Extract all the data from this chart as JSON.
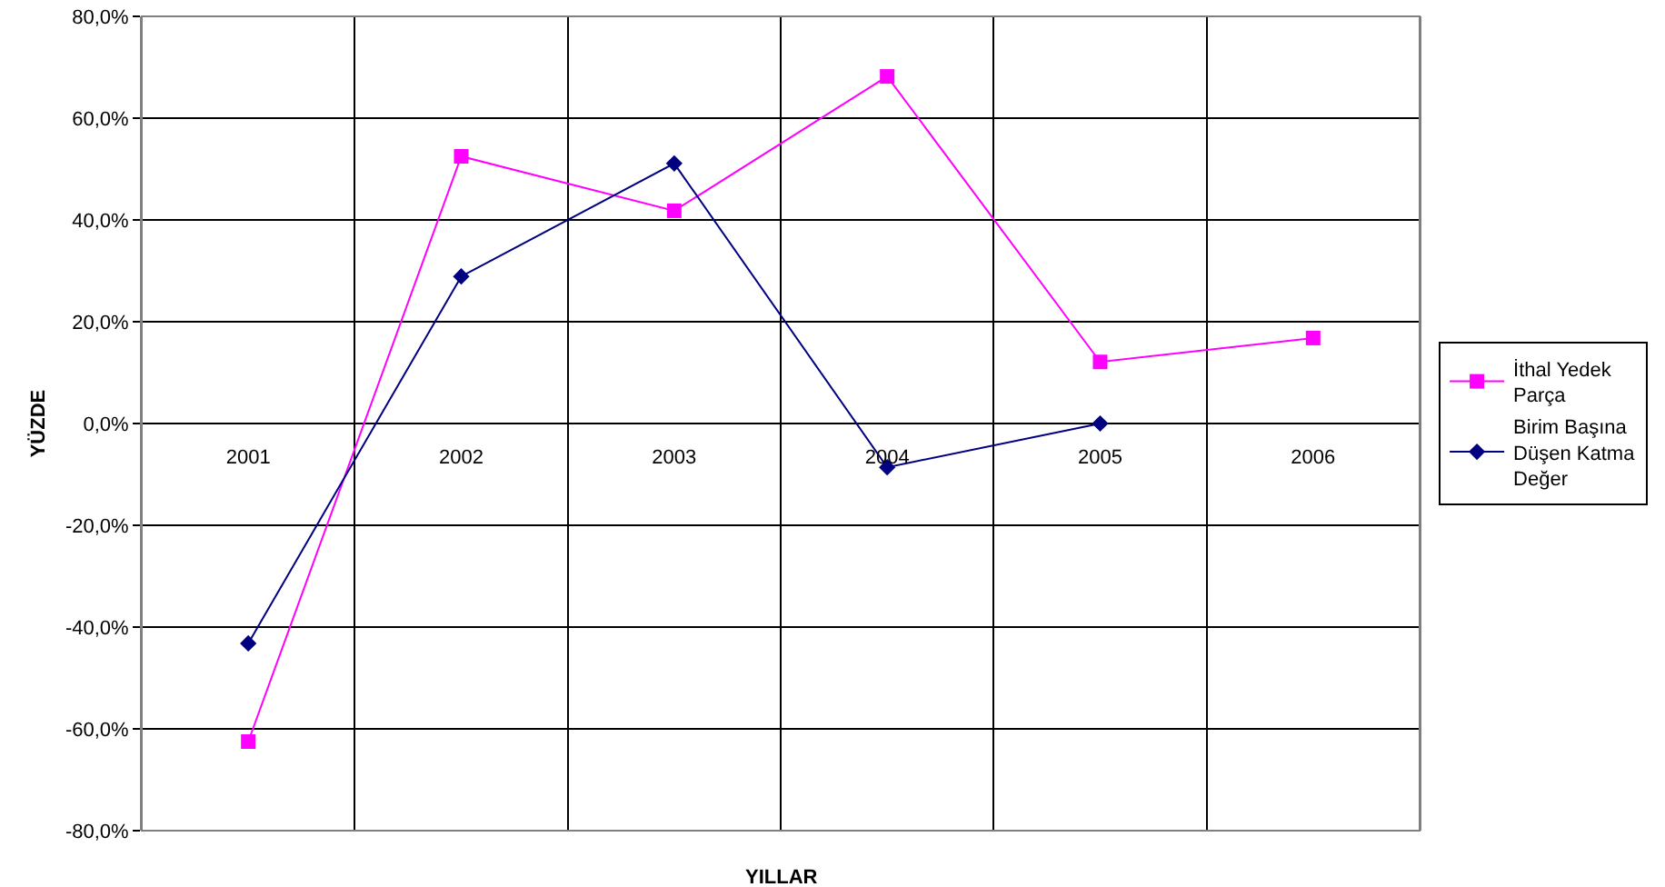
{
  "chart_data": {
    "type": "line",
    "xlabel": "YILLAR",
    "ylabel": "YÜZDE",
    "categories": [
      "2001",
      "2002",
      "2003",
      "2004",
      "2005",
      "2006"
    ],
    "series": [
      {
        "name": "İthal Yedek Parça",
        "color": "#ff00ff",
        "marker": "square",
        "values": [
          -62.5,
          52.5,
          41.8,
          68.2,
          12.1,
          16.8
        ]
      },
      {
        "name": "Birim Başına Düşen Katma Değer",
        "color": "#000080",
        "marker": "diamond",
        "values": [
          -43.2,
          28.9,
          51.1,
          -8.6,
          0,
          null
        ]
      }
    ],
    "ylim": [
      -80,
      80
    ],
    "yticks": [
      {
        "value": -80,
        "label": "-80,0%"
      },
      {
        "value": -60,
        "label": "-60,0%"
      },
      {
        "value": -40,
        "label": "-40,0%"
      },
      {
        "value": -20,
        "label": "-20,0%"
      },
      {
        "value": 0,
        "label": "0,0%"
      },
      {
        "value": 20,
        "label": "20,0%"
      },
      {
        "value": 40,
        "label": "40,0%"
      },
      {
        "value": 60,
        "label": "60,0%"
      },
      {
        "value": 80,
        "label": "80,0%"
      }
    ],
    "grid": true,
    "legend": "right",
    "line_style": "solid"
  }
}
